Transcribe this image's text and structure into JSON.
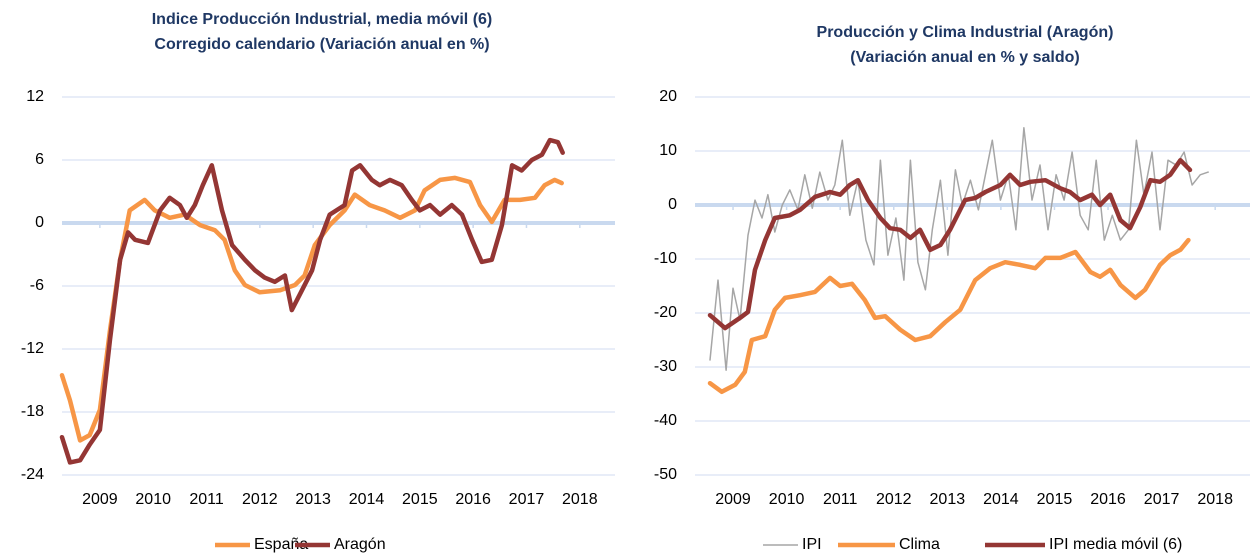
{
  "chart_data": [
    {
      "type": "line",
      "title": [
        "Indice Producción Industrial, media móvil (6)",
        "Corregido calendario (Variación anual en %)"
      ],
      "xlim": [
        2008.29,
        2018.66
      ],
      "xticks": [
        2009,
        2010,
        2011,
        2012,
        2013,
        2014,
        2015,
        2016,
        2017,
        2018
      ],
      "ylim": [
        -24,
        12
      ],
      "yticks": [
        -24,
        -18,
        -12,
        -6,
        0,
        6,
        12
      ],
      "grid": true,
      "legend": "bottom",
      "series": [
        {
          "name": "España",
          "color": "#f79646",
          "x": [
            2008.29,
            2008.44,
            2008.63,
            2008.81,
            2009.0,
            2009.19,
            2009.38,
            2009.56,
            2009.84,
            2010.03,
            2010.31,
            2010.59,
            2010.88,
            2011.16,
            2011.34,
            2011.53,
            2011.72,
            2012.0,
            2012.38,
            2012.66,
            2012.84,
            2013.03,
            2013.31,
            2013.59,
            2013.78,
            2014.06,
            2014.34,
            2014.63,
            2014.91,
            2015.09,
            2015.38,
            2015.66,
            2015.94,
            2016.13,
            2016.35,
            2016.59,
            2016.88,
            2017.16,
            2017.34,
            2017.53,
            2017.66
          ],
          "values": [
            -14.5,
            -16.9,
            -20.7,
            -20.2,
            -17.8,
            -10.2,
            -3.5,
            1.2,
            2.2,
            1.2,
            0.5,
            0.8,
            -0.2,
            -0.7,
            -1.6,
            -4.5,
            -5.9,
            -6.6,
            -6.4,
            -5.9,
            -5.0,
            -2.1,
            -0.2,
            1.2,
            2.7,
            1.7,
            1.2,
            0.5,
            1.2,
            3.1,
            4.1,
            4.3,
            3.9,
            1.7,
            0.1,
            2.2,
            2.2,
            2.4,
            3.6,
            4.1,
            3.8
          ]
        },
        {
          "name": "Aragón",
          "color": "#943634",
          "x": [
            2008.29,
            2008.44,
            2008.63,
            2008.81,
            2009.0,
            2009.19,
            2009.38,
            2009.53,
            2009.66,
            2009.9,
            2010.13,
            2010.31,
            2010.5,
            2010.63,
            2010.78,
            2010.93,
            2011.1,
            2011.29,
            2011.48,
            2011.72,
            2011.91,
            2012.09,
            2012.28,
            2012.47,
            2012.6,
            2012.79,
            2012.98,
            2013.13,
            2013.31,
            2013.59,
            2013.73,
            2013.88,
            2014.1,
            2014.25,
            2014.44,
            2014.66,
            2014.85,
            2015.0,
            2015.19,
            2015.38,
            2015.6,
            2015.79,
            2015.98,
            2016.16,
            2016.35,
            2016.54,
            2016.73,
            2016.91,
            2017.1,
            2017.29,
            2017.44,
            2017.59,
            2017.68
          ],
          "values": [
            -20.4,
            -22.8,
            -22.6,
            -21.1,
            -19.7,
            -11.1,
            -3.5,
            -0.9,
            -1.6,
            -1.9,
            1.2,
            2.4,
            1.7,
            0.5,
            1.7,
            3.6,
            5.5,
            1.2,
            -2.1,
            -3.5,
            -4.5,
            -5.2,
            -5.6,
            -5.0,
            -8.3,
            -6.4,
            -4.5,
            -1.6,
            0.8,
            1.7,
            5.0,
            5.5,
            4.1,
            3.6,
            4.1,
            3.6,
            2.2,
            1.2,
            1.7,
            0.8,
            1.7,
            0.8,
            -1.6,
            -3.7,
            -3.5,
            -0.2,
            5.5,
            5.0,
            6.0,
            6.5,
            7.9,
            7.7,
            6.7
          ]
        }
      ]
    },
    {
      "type": "line",
      "title": [
        "Producción y Clima Industrial (Aragón)",
        "(Variación anual en % y saldo)"
      ],
      "xlim": [
        2008.29,
        2018.65
      ],
      "xticks": [
        2009,
        2010,
        2011,
        2012,
        2013,
        2014,
        2015,
        2016,
        2017,
        2018
      ],
      "ylim": [
        -50,
        20
      ],
      "yticks": [
        -50,
        -40,
        -30,
        -20,
        -10,
        0,
        10,
        20
      ],
      "grid": true,
      "legend": "bottom",
      "series": [
        {
          "name": "IPI",
          "color": "#a6a6a6",
          "x": [
            2008.57,
            2008.72,
            2008.87,
            2009.0,
            2009.13,
            2009.28,
            2009.41,
            2009.54,
            2009.65,
            2009.78,
            2009.92,
            2010.06,
            2010.21,
            2010.34,
            2010.48,
            2010.62,
            2010.77,
            2010.9,
            2011.04,
            2011.18,
            2011.33,
            2011.48,
            2011.63,
            2011.75,
            2011.89,
            2012.04,
            2012.19,
            2012.31,
            2012.45,
            2012.59,
            2012.72,
            2012.87,
            2013.01,
            2013.15,
            2013.28,
            2013.43,
            2013.58,
            2013.71,
            2013.84,
            2013.99,
            2014.14,
            2014.28,
            2014.43,
            2014.58,
            2014.73,
            2014.88,
            2015.03,
            2015.18,
            2015.33,
            2015.48,
            2015.63,
            2015.78,
            2015.93,
            2016.08,
            2016.23,
            2016.38,
            2016.53,
            2016.67,
            2016.82,
            2016.97,
            2017.12,
            2017.27,
            2017.42,
            2017.57,
            2017.72,
            2017.87
          ],
          "values": [
            -28.7,
            -13.9,
            -30.6,
            -15.4,
            -21.3,
            -5.6,
            0.9,
            -2.4,
            1.9,
            -5.0,
            0.0,
            2.8,
            -0.9,
            5.6,
            -0.6,
            6.1,
            0.9,
            3.7,
            12.0,
            -1.9,
            4.6,
            -6.5,
            -11.1,
            8.3,
            -9.3,
            -2.4,
            -13.9,
            8.3,
            -10.6,
            -15.7,
            -4.6,
            4.6,
            -9.3,
            6.5,
            0.0,
            4.6,
            -0.9,
            5.6,
            12.0,
            0.9,
            5.6,
            -4.6,
            14.3,
            0.9,
            7.4,
            -4.6,
            5.6,
            0.9,
            9.8,
            -1.9,
            -4.6,
            8.3,
            -6.5,
            -1.9,
            -6.5,
            -4.6,
            12.0,
            1.9,
            9.8,
            -4.6,
            8.3,
            7.4,
            9.8,
            3.7,
            5.6,
            6.1
          ]
        },
        {
          "name": "Clima",
          "color": "#f79646",
          "x": [
            2008.57,
            2008.79,
            2009.04,
            2009.22,
            2009.35,
            2009.6,
            2009.78,
            2009.97,
            2010.25,
            2010.53,
            2010.81,
            2011.0,
            2011.22,
            2011.46,
            2011.65,
            2011.84,
            2012.12,
            2012.4,
            2012.68,
            2012.96,
            2013.24,
            2013.52,
            2013.8,
            2014.08,
            2014.36,
            2014.64,
            2014.83,
            2015.11,
            2015.39,
            2015.67,
            2015.85,
            2016.04,
            2016.23,
            2016.51,
            2016.69,
            2016.97,
            2017.16,
            2017.35,
            2017.5
          ],
          "values": [
            -33.0,
            -34.6,
            -33.3,
            -30.9,
            -25.0,
            -24.3,
            -19.4,
            -17.2,
            -16.7,
            -16.1,
            -13.5,
            -15.0,
            -14.6,
            -17.6,
            -20.9,
            -20.6,
            -23.1,
            -25.0,
            -24.3,
            -21.7,
            -19.4,
            -13.9,
            -11.7,
            -10.6,
            -11.1,
            -11.7,
            -9.8,
            -9.8,
            -8.7,
            -12.4,
            -13.3,
            -12.0,
            -14.8,
            -17.2,
            -15.7,
            -11.1,
            -9.3,
            -8.3,
            -6.5
          ]
        },
        {
          "name": "IPI media móvil (6)",
          "color": "#943634",
          "x": [
            2008.57,
            2008.85,
            2009.13,
            2009.28,
            2009.41,
            2009.6,
            2009.78,
            2010.06,
            2010.25,
            2010.53,
            2010.81,
            2011.0,
            2011.18,
            2011.33,
            2011.52,
            2011.75,
            2011.93,
            2012.12,
            2012.31,
            2012.49,
            2012.68,
            2012.87,
            2013.05,
            2013.33,
            2013.52,
            2013.71,
            2013.99,
            2014.17,
            2014.36,
            2014.55,
            2014.83,
            2015.11,
            2015.29,
            2015.48,
            2015.7,
            2015.85,
            2016.04,
            2016.23,
            2016.41,
            2016.6,
            2016.79,
            2016.97,
            2017.16,
            2017.35,
            2017.53
          ],
          "values": [
            -20.4,
            -22.8,
            -20.9,
            -19.8,
            -12.0,
            -6.5,
            -2.4,
            -1.9,
            -0.9,
            1.5,
            2.4,
            1.9,
            3.7,
            4.6,
            0.9,
            -2.4,
            -4.3,
            -4.6,
            -6.1,
            -4.6,
            -8.3,
            -7.4,
            -4.6,
            0.9,
            1.3,
            2.4,
            3.7,
            5.6,
            3.7,
            4.3,
            4.6,
            3.1,
            2.4,
            0.9,
            1.9,
            0.0,
            1.9,
            -2.8,
            -4.3,
            -0.4,
            4.6,
            4.3,
            5.6,
            8.3,
            6.5
          ]
        }
      ]
    }
  ]
}
